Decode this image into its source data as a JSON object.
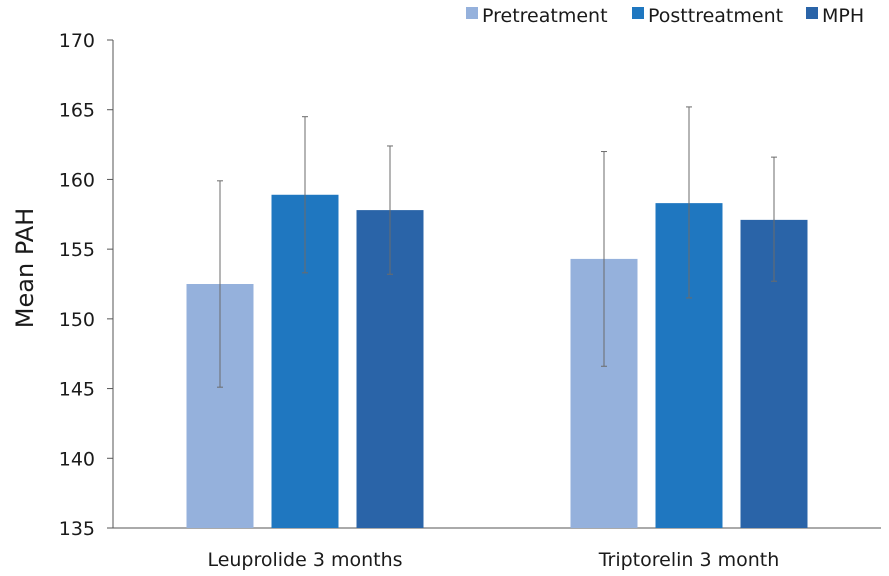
{
  "chart_data": {
    "type": "bar",
    "title": "",
    "xlabel": "",
    "ylabel": "Mean PAH",
    "ylim": [
      135,
      170
    ],
    "yticks": [
      135,
      140,
      145,
      150,
      155,
      160,
      165,
      170
    ],
    "grid": false,
    "legend_position": "top-right",
    "categories": [
      "Leuprolide 3 months",
      "Triptorelin 3 month"
    ],
    "series": [
      {
        "name": "Pretreatment",
        "color": "#95b1dc",
        "values": [
          152.5,
          154.3
        ],
        "error_low": [
          145.1,
          146.6
        ],
        "error_high": [
          159.9,
          162.0
        ]
      },
      {
        "name": "Posttreatment",
        "color": "#1f77c0",
        "values": [
          158.9,
          158.3
        ],
        "error_low": [
          153.3,
          151.5
        ],
        "error_high": [
          164.5,
          165.2
        ]
      },
      {
        "name": "MPH",
        "color": "#2a64a8",
        "values": [
          157.8,
          157.1
        ],
        "error_low": [
          153.2,
          152.7
        ],
        "error_high": [
          162.4,
          161.6
        ]
      }
    ]
  }
}
